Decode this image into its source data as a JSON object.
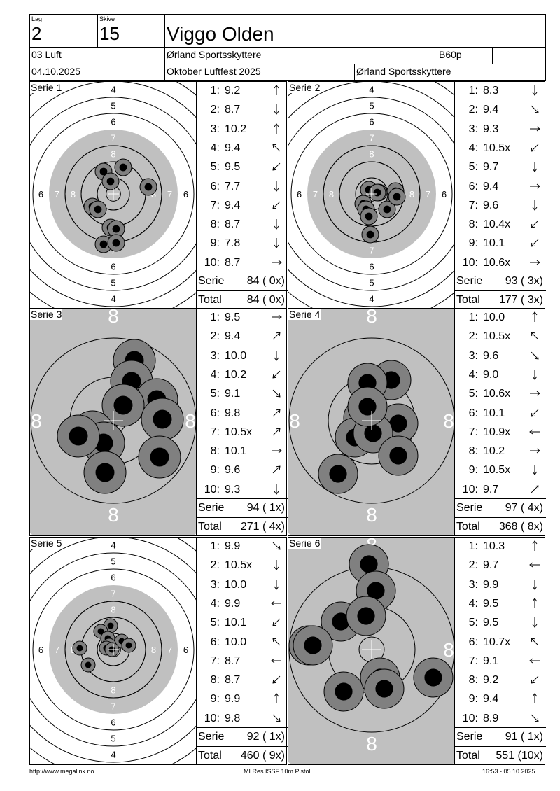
{
  "header": {
    "lag_label": "Lag",
    "lag": "2",
    "skive_label": "Skive",
    "skive": "15",
    "name": "Viggo Olden",
    "klasse": "03 Luft",
    "klubb": "Ørland Sportsskyttere",
    "program": "B60p",
    "dato": "04.10.2025",
    "stevne": "Oktober Luftfest 2025",
    "arrangor": "Ørland Sportsskyttere"
  },
  "labels": {
    "serie": "Serie",
    "total": "Total"
  },
  "series": [
    {
      "title": "Serie 1",
      "zoom": "normal",
      "shots": [
        {
          "no": "1:",
          "val": "9.2",
          "dir": "n"
        },
        {
          "no": "2:",
          "val": "8.7",
          "dir": "s"
        },
        {
          "no": "3:",
          "val": "10.2",
          "dir": "n"
        },
        {
          "no": "4:",
          "val": "9.4",
          "dir": "nw"
        },
        {
          "no": "5:",
          "val": "9.5",
          "dir": "sw"
        },
        {
          "no": "6:",
          "val": "7.7",
          "dir": "s"
        },
        {
          "no": "7:",
          "val": "9.4",
          "dir": "sw"
        },
        {
          "no": "8:",
          "val": "8.7",
          "dir": "s"
        },
        {
          "no": "9:",
          "val": "7.8",
          "dir": "s"
        },
        {
          "no": "10:",
          "val": "8.7",
          "dir": "e"
        }
      ],
      "serie_sum": "84 ( 0x)",
      "total_sum": "84 ( 0x)"
    },
    {
      "title": "Serie 2",
      "zoom": "normal",
      "shots": [
        {
          "no": "1:",
          "val": "8.3",
          "dir": "s"
        },
        {
          "no": "2:",
          "val": "9.4",
          "dir": "se"
        },
        {
          "no": "3:",
          "val": "9.3",
          "dir": "e"
        },
        {
          "no": "4:",
          "val": "10.5x",
          "dir": "sw"
        },
        {
          "no": "5:",
          "val": "9.7",
          "dir": "s"
        },
        {
          "no": "6:",
          "val": "9.4",
          "dir": "e"
        },
        {
          "no": "7:",
          "val": "9.6",
          "dir": "s"
        },
        {
          "no": "8:",
          "val": "10.4x",
          "dir": "sw"
        },
        {
          "no": "9:",
          "val": "10.1",
          "dir": "sw"
        },
        {
          "no": "10:",
          "val": "10.6x",
          "dir": "e"
        }
      ],
      "serie_sum": "93 ( 3x)",
      "total_sum": "177 ( 3x)"
    },
    {
      "title": "Serie 3",
      "zoom": "zoom",
      "shots": [
        {
          "no": "1:",
          "val": "9.5",
          "dir": "e"
        },
        {
          "no": "2:",
          "val": "9.4",
          "dir": "ne"
        },
        {
          "no": "3:",
          "val": "10.0",
          "dir": "s"
        },
        {
          "no": "4:",
          "val": "10.2",
          "dir": "sw"
        },
        {
          "no": "5:",
          "val": "9.1",
          "dir": "se"
        },
        {
          "no": "6:",
          "val": "9.8",
          "dir": "ne"
        },
        {
          "no": "7:",
          "val": "10.5x",
          "dir": "ne"
        },
        {
          "no": "8:",
          "val": "10.1",
          "dir": "e"
        },
        {
          "no": "9:",
          "val": "9.6",
          "dir": "ne"
        },
        {
          "no": "10:",
          "val": "9.3",
          "dir": "s"
        }
      ],
      "serie_sum": "94 ( 1x)",
      "total_sum": "271 ( 4x)"
    },
    {
      "title": "Serie 4",
      "zoom": "zoom",
      "shots": [
        {
          "no": "1:",
          "val": "10.0",
          "dir": "n"
        },
        {
          "no": "2:",
          "val": "10.5x",
          "dir": "nw"
        },
        {
          "no": "3:",
          "val": "9.6",
          "dir": "se"
        },
        {
          "no": "4:",
          "val": "9.0",
          "dir": "s"
        },
        {
          "no": "5:",
          "val": "10.6x",
          "dir": "e"
        },
        {
          "no": "6:",
          "val": "10.1",
          "dir": "sw"
        },
        {
          "no": "7:",
          "val": "10.9x",
          "dir": "w"
        },
        {
          "no": "8:",
          "val": "10.2",
          "dir": "e"
        },
        {
          "no": "9:",
          "val": "10.5x",
          "dir": "s"
        },
        {
          "no": "10:",
          "val": "9.7",
          "dir": "ne"
        }
      ],
      "serie_sum": "97 ( 4x)",
      "total_sum": "368 ( 8x)"
    },
    {
      "title": "Serie 5",
      "zoom": "normal",
      "shots": [
        {
          "no": "1:",
          "val": "9.9",
          "dir": "se"
        },
        {
          "no": "2:",
          "val": "10.5x",
          "dir": "s"
        },
        {
          "no": "3:",
          "val": "10.0",
          "dir": "s"
        },
        {
          "no": "4:",
          "val": "9.9",
          "dir": "w"
        },
        {
          "no": "5:",
          "val": "10.1",
          "dir": "sw"
        },
        {
          "no": "6:",
          "val": "10.0",
          "dir": "nw"
        },
        {
          "no": "7:",
          "val": "8.7",
          "dir": "w"
        },
        {
          "no": "8:",
          "val": "8.7",
          "dir": "sw"
        },
        {
          "no": "9:",
          "val": "9.9",
          "dir": "n"
        },
        {
          "no": "10:",
          "val": "9.8",
          "dir": "se"
        }
      ],
      "serie_sum": "92 ( 1x)",
      "total_sum": "460 ( 9x)"
    },
    {
      "title": "Serie 6",
      "zoom": "zoom",
      "shots": [
        {
          "no": "1:",
          "val": "10.3",
          "dir": "n"
        },
        {
          "no": "2:",
          "val": "9.7",
          "dir": "w"
        },
        {
          "no": "3:",
          "val": "9.9",
          "dir": "s"
        },
        {
          "no": "4:",
          "val": "9.5",
          "dir": "n"
        },
        {
          "no": "5:",
          "val": "9.5",
          "dir": "s"
        },
        {
          "no": "6:",
          "val": "10.7x",
          "dir": "nw"
        },
        {
          "no": "7:",
          "val": "9.1",
          "dir": "w"
        },
        {
          "no": "8:",
          "val": "9.2",
          "dir": "sw"
        },
        {
          "no": "9:",
          "val": "9.4",
          "dir": "n"
        },
        {
          "no": "10:",
          "val": "8.9",
          "dir": "se"
        }
      ],
      "serie_sum": "91 ( 1x)",
      "total_sum": "551 (10x)"
    }
  ],
  "footer": {
    "url": "http://www.megalink.no",
    "app": "MLRes ISSF 10m Pistol",
    "timestamp": "16:53 - 05.10.2025"
  },
  "colors": {
    "black_zone": "#c0c0c0",
    "hit_ring": "#808080",
    "hit_core": "#000000"
  }
}
